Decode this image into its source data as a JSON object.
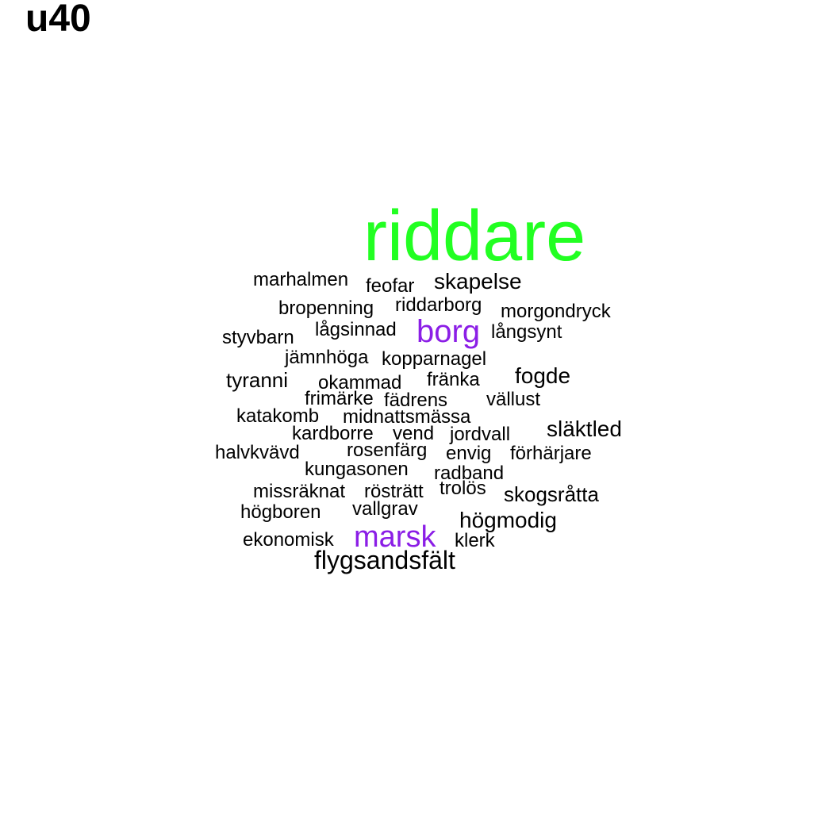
{
  "title": "u40",
  "colors": {
    "top_word": "#22ff22",
    "second_tier": "#8b1ee6",
    "default": "#000000"
  },
  "words": {
    "riddare": "riddare",
    "borg": "borg",
    "marsk": "marsk",
    "flygsandsfalt": "flygsandsfält",
    "skapelse": "skapelse",
    "fogde": "fogde",
    "slaktled": "släktled",
    "hogmodig": "högmodig",
    "skogsratta": "skogsråtta",
    "tyranni": "tyranni",
    "marhalmen": "marhalmen",
    "feofar": "feofar",
    "bropenning": "bropenning",
    "riddarborg": "riddarborg",
    "morgondryck": "morgondryck",
    "styvbarn": "styvbarn",
    "lagsinnad": "lågsinnad",
    "langsynt": "långsynt",
    "jamnhoga": "jämnhöga",
    "koppamagel": "kopparnagel",
    "okammad": "okammad",
    "franka": "fränka",
    "frimarke": "frimärke",
    "fadrens": "fädrens",
    "vallust": "vällust",
    "katakomb": "katakomb",
    "midnattsmassa": "midnattsmässa",
    "kardborre": "kardborre",
    "vend": "vend",
    "jordvall": "jordvall",
    "halvkvavd": "halvkvävd",
    "rosenfarg": "rosenfärg",
    "envig": "envig",
    "forharjare": "förhärjare",
    "kungasonen": "kungasonen",
    "radband": "radband",
    "missraknat": "missräknat",
    "rostratt": "rösträtt",
    "trolos": "trolös",
    "hogboren": "högboren",
    "vallgrav": "vallgrav",
    "ekonomisk": "ekonomisk",
    "klerk": "klerk"
  }
}
